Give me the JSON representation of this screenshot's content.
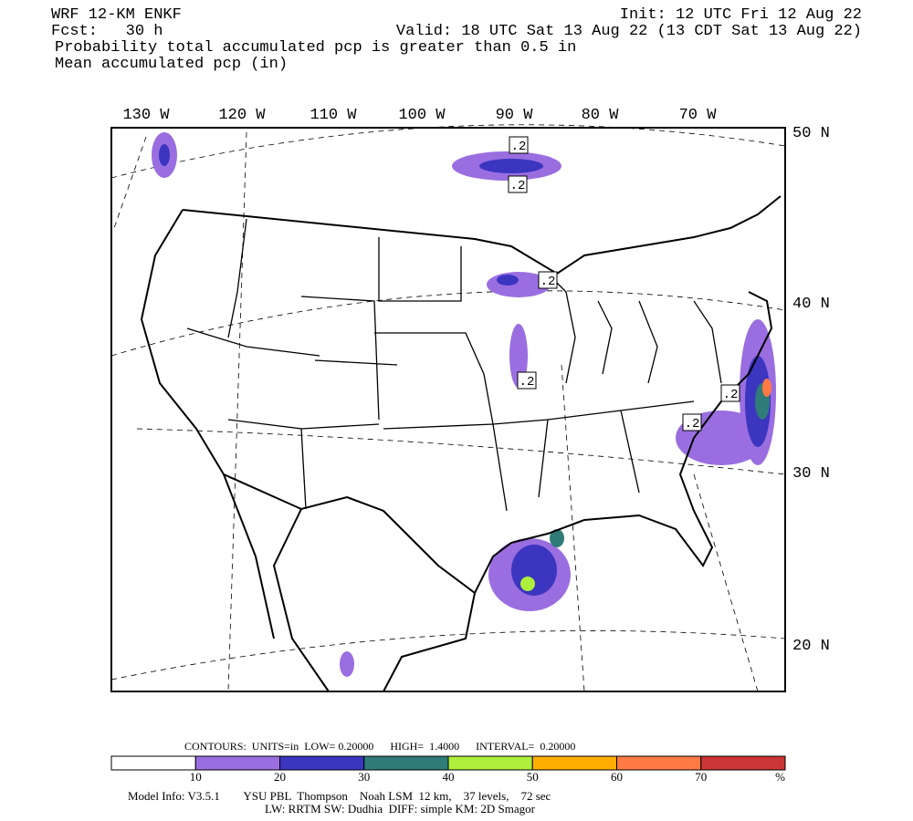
{
  "header": {
    "model": "WRF 12-KM ENKF",
    "forecast": "Fcst:   30 h",
    "field": "Probability total accumulated pcp is greater than 0.5 in",
    "overlay": "Mean accumulated pcp (in)",
    "init": "Init: 12 UTC Fri 12 Aug 22",
    "valid": "Valid: 18 UTC Sat 13 Aug 22 (13 CDT Sat 13 Aug 22)"
  },
  "map": {
    "lon_labels": [
      "130 W",
      "120 W",
      "110 W",
      "100 W",
      "90 W",
      "80 W",
      "70 W"
    ],
    "lat_labels": [
      "50 N",
      "40 N",
      "30 N",
      "20 N"
    ],
    "contour_labels": [
      ".2",
      ".2",
      ".2",
      ".2",
      ".2",
      ".2"
    ]
  },
  "legend": {
    "contours": "CONTOURS:  UNITS=in  LOW= 0.20000      HIGH=  1.4000      INTERVAL=  0.20000",
    "colors": [
      "#ffffff",
      "#9a6ee0",
      "#3b35c0",
      "#2f7c78",
      "#adef3a",
      "#ffae00",
      "#ff7a45",
      "#cc3535"
    ],
    "labels": [
      "10",
      "20",
      "30",
      "40",
      "50",
      "60",
      "70",
      "%"
    ]
  },
  "footer": {
    "line1": "Model Info: V3.5.1        YSU PBL  Thompson    Noah LSM  12 km,    37 levels,    72 sec",
    "line2": "LW: RRTM SW: Dudhia  DIFF: simple KM: 2D Smagor"
  }
}
